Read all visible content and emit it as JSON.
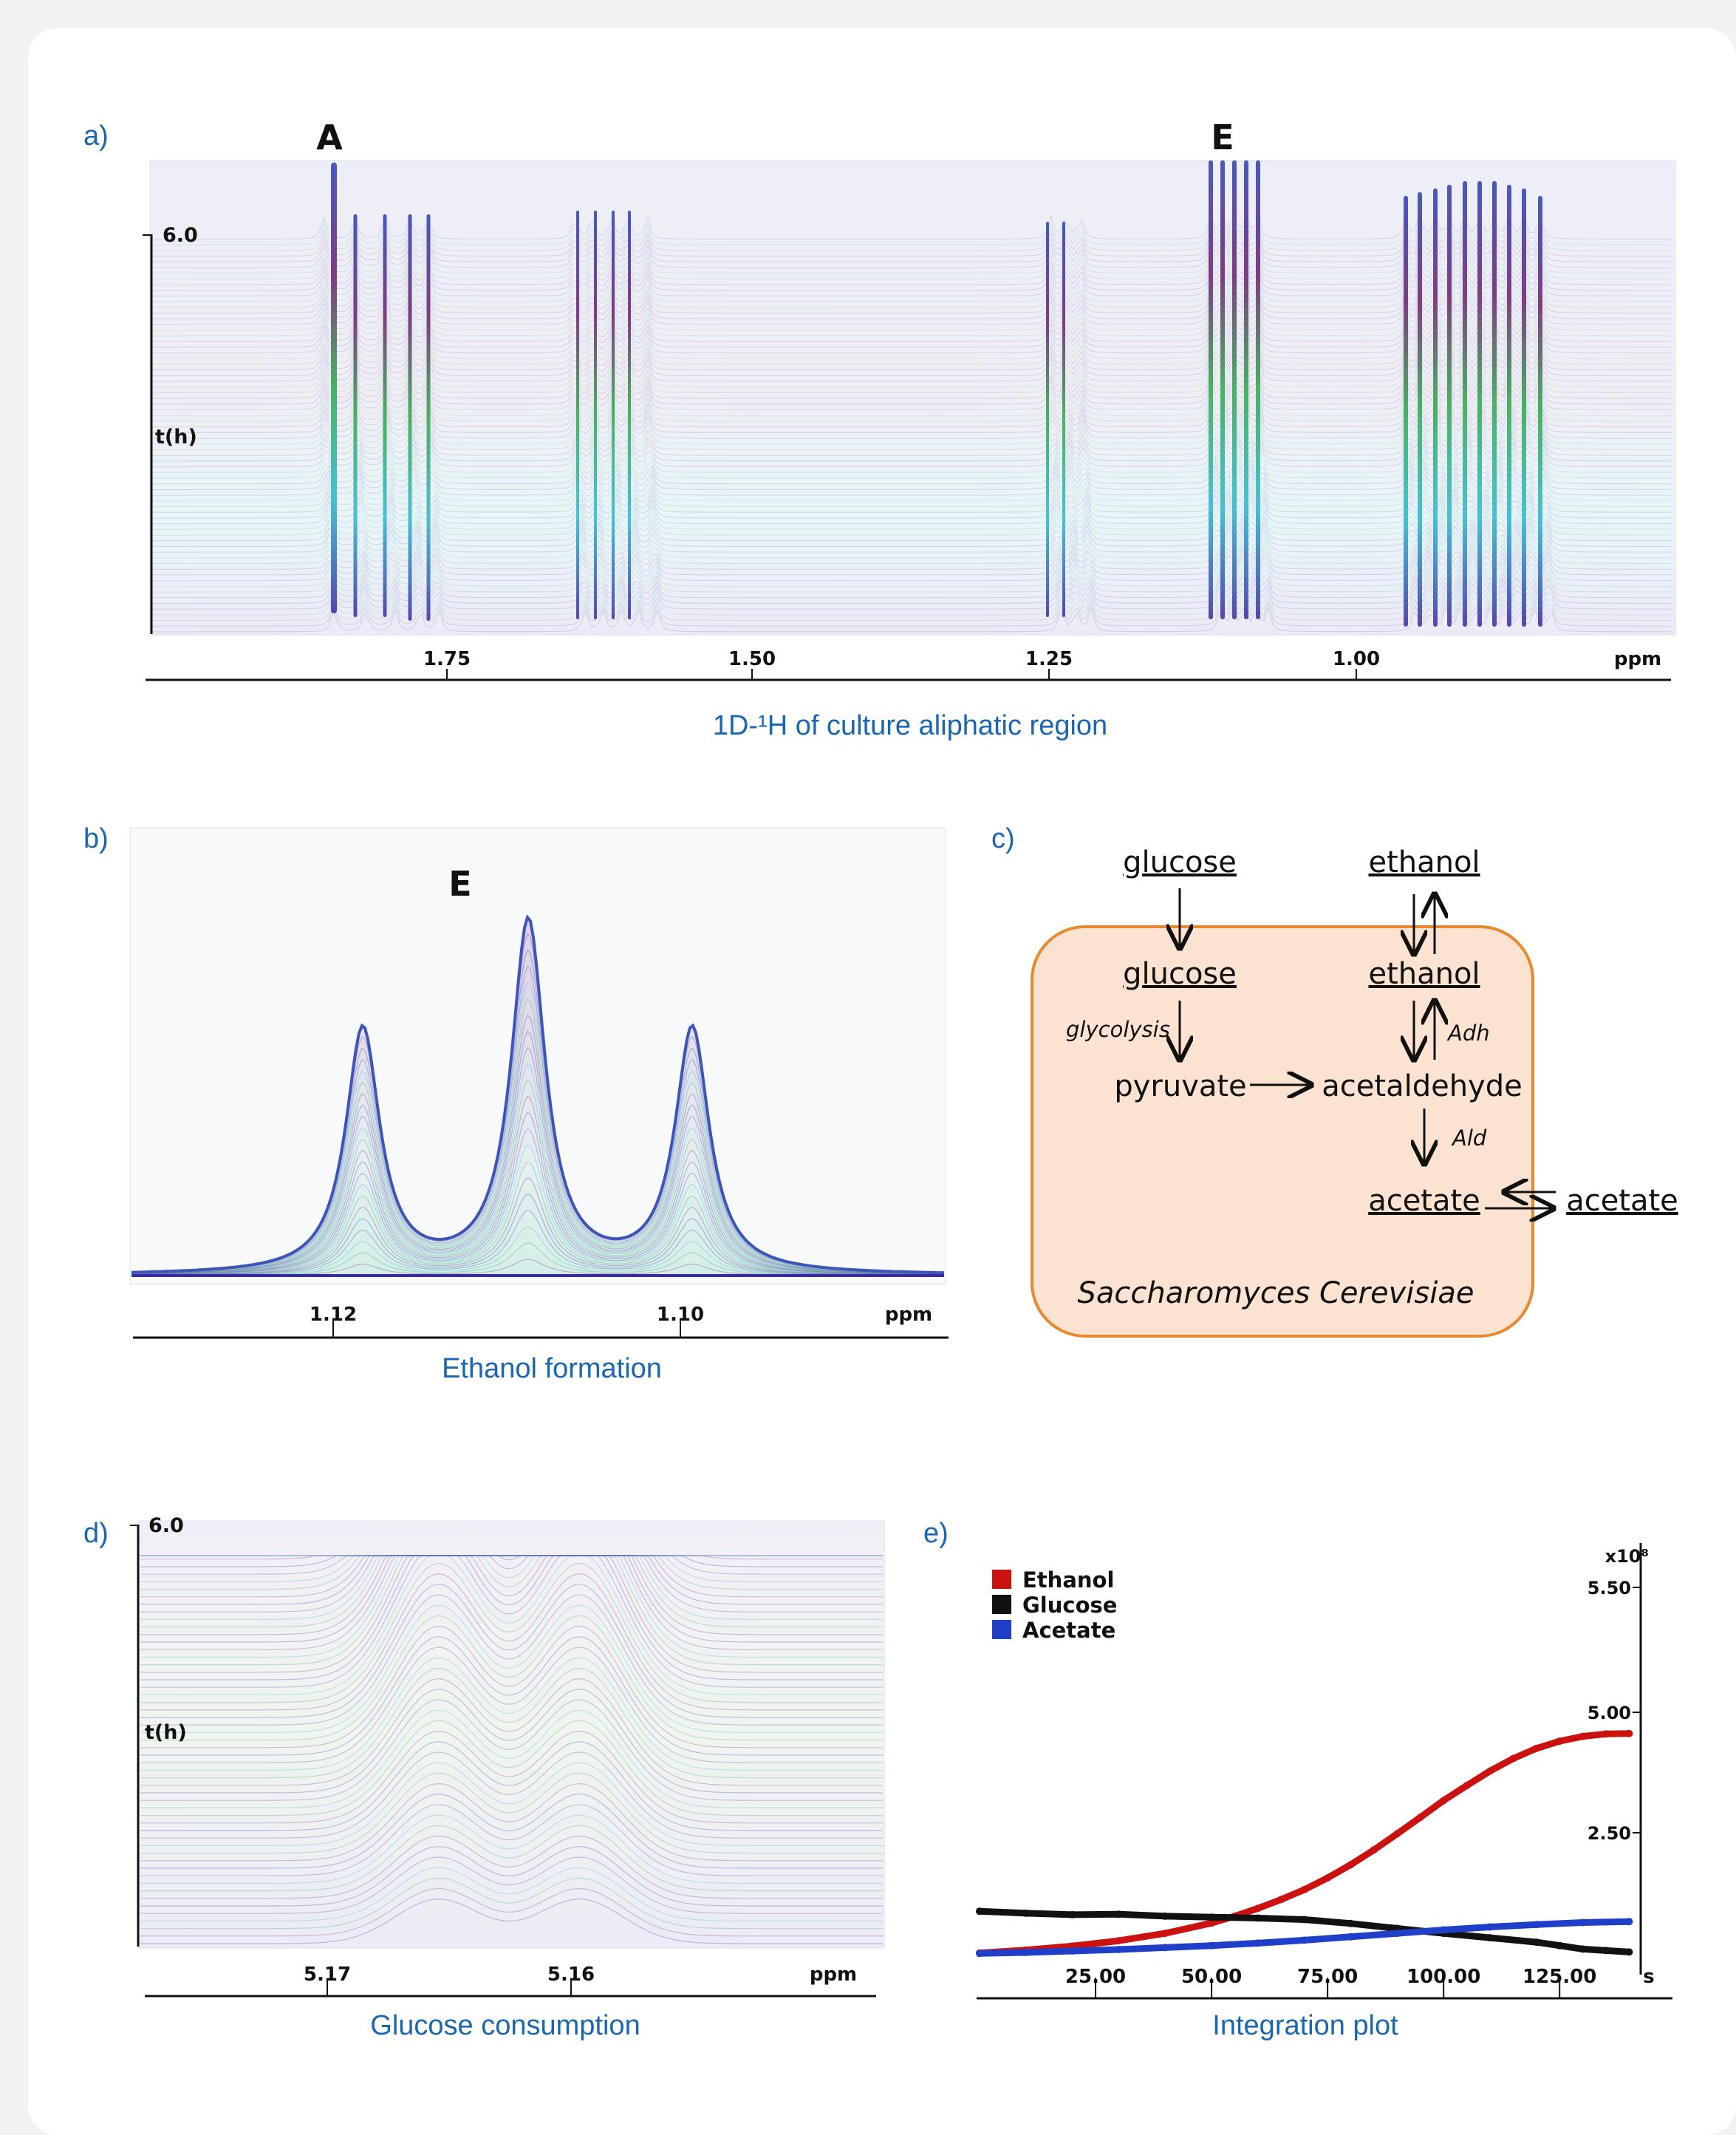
{
  "colors": {
    "accent": "#1a66b3",
    "ethanol": "#cc1111",
    "glucose": "#111111",
    "acetate": "#1f3fc8",
    "cell_fill": "#fce3d1",
    "cell_stroke": "#e8892e"
  },
  "panel_a": {
    "letter": "a)",
    "caption": "1D-¹H of culture aliphatic region",
    "peak_labels": [
      "A",
      "E"
    ],
    "ylabel": "t(h)",
    "ytop": "6.0",
    "xunit": "ppm",
    "xticks": [
      "1.75",
      "1.50",
      "1.25",
      "1.00"
    ]
  },
  "panel_b": {
    "letter": "b)",
    "caption": "Ethanol formation",
    "peak_label": "E",
    "xunit": "ppm",
    "xticks": [
      "1.12",
      "1.10"
    ]
  },
  "panel_c": {
    "letter": "c)",
    "outside_glucose": "glucose",
    "outside_ethanol": "ethanol",
    "glucose": "glucose",
    "ethanol": "ethanol",
    "glycolysis": "glycolysis",
    "adh": "Adh",
    "ald": "Ald",
    "pyruvate": "pyruvate",
    "acetaldehyde": "acetaldehyde",
    "acetate": "acetate",
    "outside_acetate": "acetate",
    "organism": "Saccharomyces Cerevisiae"
  },
  "panel_d": {
    "letter": "d)",
    "caption": "Glucose consumption",
    "ylabel": "t(h)",
    "ytop": "6.0",
    "xunit": "ppm",
    "xticks": [
      "5.17",
      "5.16"
    ]
  },
  "chart_data": [
    {
      "type": "line",
      "panel": "e)",
      "caption": "Integration plot",
      "xunit": "s",
      "xticks": [
        "25.00",
        "50.00",
        "75.00",
        "100.00",
        "125.00"
      ],
      "xlim": [
        0,
        142
      ],
      "yscale_label": "x10⁸",
      "yticks": [
        "5.50",
        "5.00",
        "2.50"
      ],
      "ylim": [
        0,
        5.5
      ],
      "legend": "top-left",
      "series": [
        {
          "name": "Ethanol",
          "color": "#cc1111",
          "x": [
            0,
            10,
            20,
            30,
            40,
            50,
            55,
            60,
            65,
            70,
            75,
            80,
            85,
            90,
            95,
            100,
            105,
            110,
            115,
            120,
            125,
            130,
            135,
            140
          ],
          "y": [
            0.05,
            0.11,
            0.19,
            0.3,
            0.45,
            0.66,
            0.8,
            0.96,
            1.14,
            1.34,
            1.58,
            1.85,
            2.15,
            2.48,
            2.82,
            3.17,
            3.48,
            3.78,
            4.04,
            4.25,
            4.4,
            4.5,
            4.55,
            4.56
          ]
        },
        {
          "name": "Glucose",
          "color": "#111111",
          "x": [
            0,
            10,
            20,
            30,
            40,
            50,
            60,
            70,
            80,
            90,
            100,
            110,
            120,
            125,
            130,
            135,
            140
          ],
          "y": [
            0.9,
            0.86,
            0.83,
            0.84,
            0.8,
            0.78,
            0.76,
            0.73,
            0.65,
            0.55,
            0.45,
            0.36,
            0.27,
            0.2,
            0.13,
            0.1,
            0.07
          ]
        },
        {
          "name": "Acetate",
          "color": "#1f3fc8",
          "x": [
            0,
            10,
            20,
            30,
            40,
            50,
            60,
            70,
            80,
            90,
            100,
            110,
            120,
            130,
            140
          ],
          "y": [
            0.04,
            0.06,
            0.09,
            0.12,
            0.16,
            0.2,
            0.25,
            0.31,
            0.38,
            0.45,
            0.52,
            0.58,
            0.63,
            0.67,
            0.69
          ]
        }
      ]
    }
  ]
}
